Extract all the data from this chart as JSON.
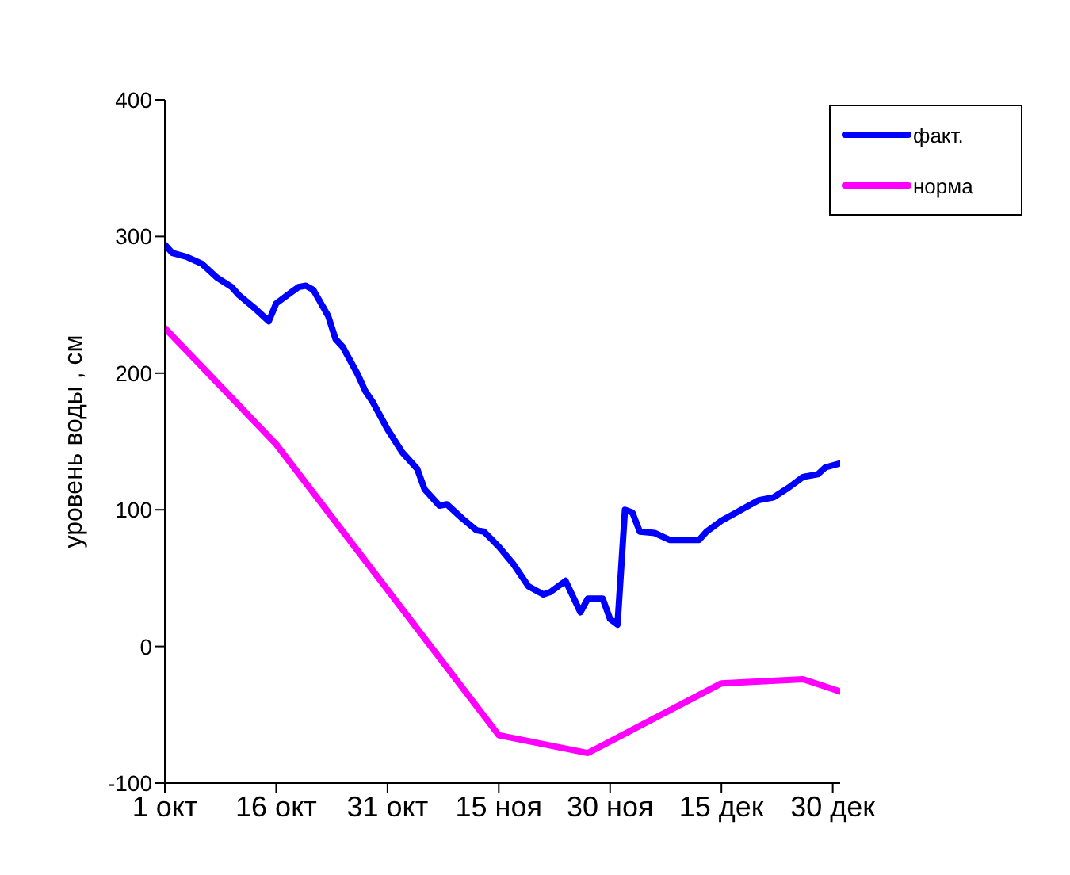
{
  "chart_data": {
    "type": "line",
    "ylabel": "уровень воды , см",
    "ylim": [
      -100,
      400
    ],
    "yticks": [
      -100,
      0,
      100,
      200,
      300,
      400
    ],
    "xlim": [
      "--10-01",
      "--12-31"
    ],
    "xticks": [
      {
        "value": "--10-01",
        "label": "1 окт"
      },
      {
        "value": "--10-16",
        "label": "16 окт"
      },
      {
        "value": "--10-31",
        "label": "31 окт"
      },
      {
        "value": "--11-15",
        "label": "15 ноя"
      },
      {
        "value": "--11-30",
        "label": "30 ноя"
      },
      {
        "value": "--12-15",
        "label": "15 дек"
      },
      {
        "value": "--12-30",
        "label": "30 дек"
      }
    ],
    "legend": "top right",
    "marker": "none",
    "line_style": "solid",
    "series": [
      {
        "name": "факт.",
        "color": "#0000ff",
        "x": [
          "--10-01",
          "--10-02",
          "--10-04",
          "--10-06",
          "--10-08",
          "--10-10",
          "--10-11",
          "--10-13",
          "--10-15",
          "--10-16",
          "--10-18",
          "--10-19",
          "--10-20",
          "--10-21",
          "--10-23",
          "--10-24",
          "--10-25",
          "--10-27",
          "--10-28",
          "--10-29",
          "--10-31",
          "--11-02",
          "--11-04",
          "--11-05",
          "--11-07",
          "--11-08",
          "--11-10",
          "--11-12",
          "--11-13",
          "--11-15",
          "--11-17",
          "--11-19",
          "--11-21",
          "--11-22",
          "--11-24",
          "--11-26",
          "--11-27",
          "--11-29",
          "--11-30",
          "--12-01",
          "--12-02",
          "--12-03",
          "--12-04",
          "--12-06",
          "--12-08",
          "--12-10",
          "--12-12",
          "--12-13",
          "--12-15",
          "--12-17",
          "--12-18",
          "--12-20",
          "--12-22",
          "--12-24",
          "--12-26",
          "--12-28",
          "--12-29",
          "--12-31"
        ],
        "values": [
          294,
          288,
          285,
          280,
          270,
          263,
          257,
          248,
          238,
          251,
          259,
          263,
          264,
          261,
          242,
          225,
          219,
          199,
          187,
          179,
          159,
          142,
          130,
          115,
          103,
          104,
          94,
          85,
          84,
          73,
          60,
          44,
          38,
          40,
          48,
          25,
          35,
          35,
          20,
          16,
          100,
          98,
          84,
          83,
          78,
          78,
          78,
          84,
          92,
          98,
          101,
          107,
          109,
          116,
          124,
          126,
          131,
          134
        ]
      },
      {
        "name": "норма",
        "color": "#ff00ff",
        "x": [
          "--10-01",
          "--10-16",
          "--11-15",
          "--11-27",
          "--12-15",
          "--12-26",
          "--12-31"
        ],
        "values": [
          233,
          148,
          -65,
          -78,
          -27,
          -24,
          -33
        ]
      }
    ]
  }
}
